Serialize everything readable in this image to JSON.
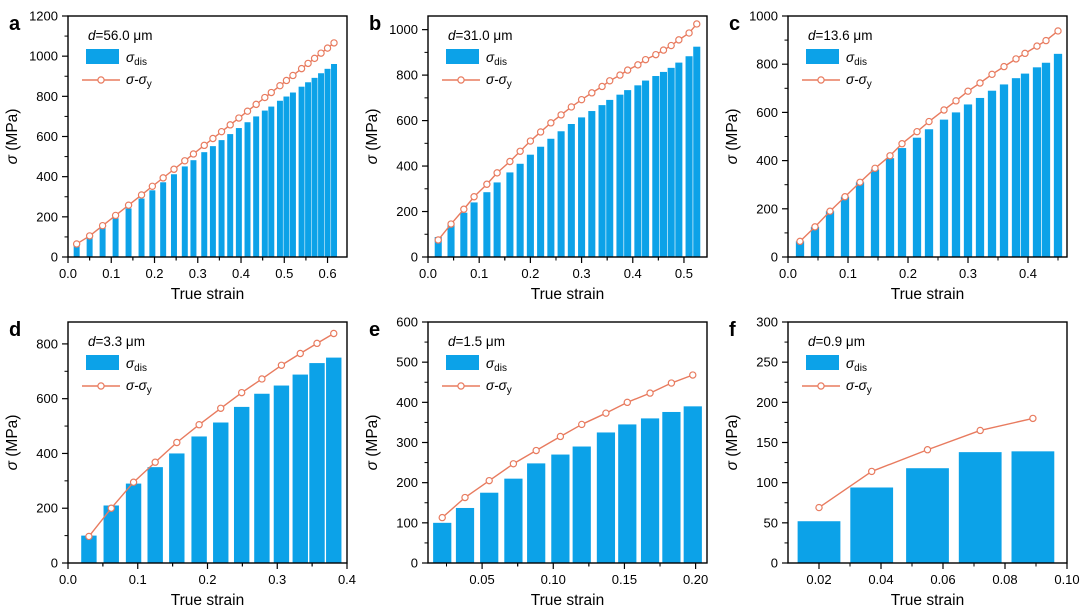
{
  "figure": {
    "xlabel": "True strain",
    "ylabel": {
      "symbol": "σ",
      "rest": " (MPa)"
    },
    "legend": {
      "bar": {
        "main": "σ",
        "sub": "dis"
      },
      "line": {
        "main": "σ-σ",
        "sub": "y"
      }
    },
    "colors": {
      "bar": "#0CA2E8",
      "line": "#E87B5F",
      "marker_fill": "#FFFFFF",
      "axis": "#000000",
      "background": "#FFFFFF"
    }
  },
  "chart_data": [
    {
      "type": "bar",
      "panel": "a",
      "annotation": "d=56.0 μm",
      "xlabel": "True strain",
      "ylabel": "σ (MPa)",
      "xlim": [
        0,
        0.645
      ],
      "ylim": [
        0,
        1200
      ],
      "xticks": [
        0,
        0.1,
        0.2,
        0.3,
        0.4,
        0.5,
        0.6
      ],
      "xtick_labels": [
        "0.0",
        "0.1",
        "0.2",
        "0.3",
        "0.4",
        "0.5",
        "0.6"
      ],
      "yticks": [
        0,
        200,
        400,
        600,
        800,
        1000,
        1200
      ],
      "x": [
        0.02,
        0.05,
        0.08,
        0.11,
        0.14,
        0.17,
        0.195,
        0.22,
        0.245,
        0.27,
        0.29,
        0.315,
        0.335,
        0.355,
        0.375,
        0.395,
        0.415,
        0.435,
        0.455,
        0.47,
        0.49,
        0.505,
        0.52,
        0.54,
        0.555,
        0.57,
        0.585,
        0.6,
        0.615
      ],
      "series": [
        {
          "name": "σdis",
          "type": "bar",
          "values": [
            55,
            95,
            144,
            193,
            242,
            291,
            332,
            372,
            412,
            451,
            482,
            522,
            552,
            582,
            612,
            642,
            671,
            700,
            729,
            749,
            778,
            799,
            819,
            848,
            870,
            892,
            915,
            937,
            961
          ]
        },
        {
          "name": "σ-σy",
          "type": "line",
          "values": [
            65,
            105,
            156,
            207,
            258,
            309,
            352,
            394,
            437,
            479,
            513,
            556,
            590,
            624,
            658,
            692,
            726,
            760,
            794,
            819,
            853,
            879,
            904,
            938,
            964,
            989,
            1015,
            1040,
            1066
          ]
        }
      ]
    },
    {
      "type": "bar",
      "panel": "b",
      "annotation": "d=31.0 μm",
      "xlabel": "True strain",
      "ylabel": "σ (MPa)",
      "xlim": [
        0,
        0.545
      ],
      "ylim": [
        0,
        1060
      ],
      "xticks": [
        0,
        0.1,
        0.2,
        0.3,
        0.4,
        0.5
      ],
      "xtick_labels": [
        "0.0",
        "0.1",
        "0.2",
        "0.3",
        "0.4",
        "0.5"
      ],
      "yticks": [
        0,
        200,
        400,
        600,
        800,
        1000
      ],
      "x": [
        0.02,
        0.045,
        0.07,
        0.09,
        0.115,
        0.135,
        0.16,
        0.18,
        0.2,
        0.22,
        0.24,
        0.26,
        0.28,
        0.3,
        0.32,
        0.34,
        0.355,
        0.375,
        0.39,
        0.41,
        0.425,
        0.445,
        0.46,
        0.475,
        0.49,
        0.51,
        0.525
      ],
      "series": [
        {
          "name": "σdis",
          "type": "bar",
          "values": [
            88,
            140,
            195,
            240,
            285,
            328,
            372,
            410,
            450,
            485,
            520,
            553,
            585,
            614,
            642,
            668,
            691,
            714,
            734,
            755,
            776,
            796,
            814,
            832,
            855,
            883,
            925
          ]
        },
        {
          "name": "σ-σy",
          "type": "line",
          "values": [
            75,
            145,
            210,
            265,
            320,
            370,
            420,
            465,
            510,
            550,
            590,
            625,
            660,
            692,
            722,
            750,
            775,
            800,
            822,
            845,
            868,
            890,
            910,
            930,
            955,
            985,
            1025
          ]
        }
      ]
    },
    {
      "type": "bar",
      "panel": "c",
      "annotation": "d=13.6 μm",
      "xlabel": "True strain",
      "ylabel": "σ (MPa)",
      "xlim": [
        0,
        0.465
      ],
      "ylim": [
        0,
        1000
      ],
      "xticks": [
        0,
        0.1,
        0.2,
        0.3,
        0.4
      ],
      "xtick_labels": [
        "0.0",
        "0.1",
        "0.2",
        "0.3",
        "0.4"
      ],
      "yticks": [
        0,
        200,
        400,
        600,
        800,
        1000
      ],
      "x": [
        0.02,
        0.045,
        0.07,
        0.095,
        0.12,
        0.145,
        0.17,
        0.19,
        0.215,
        0.235,
        0.26,
        0.28,
        0.3,
        0.32,
        0.34,
        0.36,
        0.38,
        0.395,
        0.415,
        0.43,
        0.45
      ],
      "series": [
        {
          "name": "σdis",
          "type": "bar",
          "values": [
            65,
            125,
            190,
            250,
            310,
            363,
            410,
            452,
            495,
            530,
            570,
            600,
            633,
            660,
            690,
            716,
            742,
            761,
            787,
            806,
            843
          ]
        },
        {
          "name": "σ-σy",
          "type": "line",
          "values": [
            65,
            125,
            190,
            250,
            310,
            368,
            420,
            470,
            520,
            562,
            610,
            648,
            688,
            722,
            758,
            790,
            822,
            845,
            875,
            898,
            938
          ]
        }
      ]
    },
    {
      "type": "bar",
      "panel": "d",
      "annotation": "d=3.3 μm",
      "xlabel": "True strain",
      "ylabel": "σ (MPa)",
      "xlim": [
        0,
        0.4
      ],
      "ylim": [
        0,
        880
      ],
      "xticks": [
        0,
        0.1,
        0.2,
        0.3,
        0.4
      ],
      "xtick_labels": [
        "0.0",
        "0.1",
        "0.2",
        "0.3",
        "0.4"
      ],
      "yticks": [
        0,
        200,
        400,
        600,
        800
      ],
      "x": [
        0.03,
        0.062,
        0.094,
        0.125,
        0.156,
        0.188,
        0.219,
        0.249,
        0.278,
        0.306,
        0.333,
        0.357,
        0.381
      ],
      "series": [
        {
          "name": "σdis",
          "type": "bar",
          "values": [
            100,
            210,
            290,
            350,
            400,
            462,
            513,
            570,
            618,
            648,
            688,
            730,
            750
          ]
        },
        {
          "name": "σ-σy",
          "type": "line",
          "values": [
            97,
            200,
            295,
            368,
            440,
            505,
            565,
            622,
            672,
            722,
            765,
            802,
            838
          ]
        }
      ]
    },
    {
      "type": "bar",
      "panel": "e",
      "annotation": "d=1.5 μm",
      "xlabel": "True strain",
      "ylabel": "σ (MPa)",
      "xlim": [
        0.012,
        0.208
      ],
      "ylim": [
        0,
        600
      ],
      "xticks": [
        0.05,
        0.1,
        0.15,
        0.2
      ],
      "xtick_labels": [
        "0.05",
        "0.10",
        "0.15",
        "0.20"
      ],
      "yticks": [
        0,
        100,
        200,
        300,
        400,
        500,
        600
      ],
      "x": [
        0.022,
        0.038,
        0.055,
        0.072,
        0.088,
        0.105,
        0.12,
        0.137,
        0.152,
        0.168,
        0.183,
        0.198
      ],
      "series": [
        {
          "name": "σdis",
          "type": "bar",
          "values": [
            100,
            137,
            175,
            210,
            248,
            270,
            290,
            325,
            345,
            360,
            376,
            390
          ]
        },
        {
          "name": "σ-σy",
          "type": "line",
          "values": [
            113,
            163,
            205,
            247,
            280,
            315,
            345,
            373,
            400,
            423,
            448,
            468
          ]
        }
      ]
    },
    {
      "type": "bar",
      "panel": "f",
      "annotation": "d=0.9 μm",
      "xlabel": "True strain",
      "ylabel": "σ (MPa)",
      "xlim": [
        0.01,
        0.1
      ],
      "ylim": [
        0,
        300
      ],
      "xticks": [
        0.02,
        0.04,
        0.06,
        0.08,
        0.1
      ],
      "xtick_labels": [
        "0.02",
        "0.04",
        "0.06",
        "0.08",
        "0.10"
      ],
      "yticks": [
        0,
        50,
        100,
        150,
        200,
        250,
        300
      ],
      "x": [
        0.02,
        0.037,
        0.055,
        0.072,
        0.089
      ],
      "series": [
        {
          "name": "σdis",
          "type": "bar",
          "values": [
            52,
            94,
            118,
            138,
            139
          ]
        },
        {
          "name": "σ-σy",
          "type": "line",
          "values": [
            69,
            114,
            141,
            165,
            180
          ]
        }
      ]
    }
  ]
}
